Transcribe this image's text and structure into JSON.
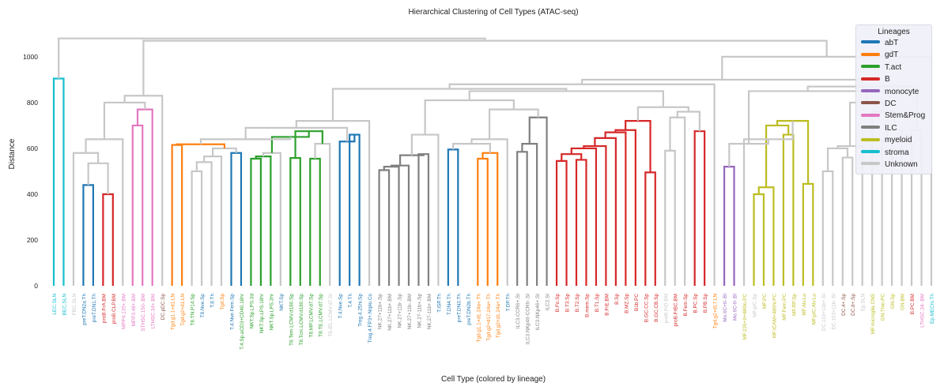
{
  "chart_data": {
    "type": "dendrogram",
    "title": "Hierarchical Clustering of Cell Types (ATAC-seq)",
    "xlabel": "Cell Type (colored by lineage)",
    "ylabel": "Distance",
    "ylim": [
      0,
      1110
    ],
    "yticks": [
      0,
      200,
      400,
      600,
      800,
      1000
    ],
    "grid": false,
    "legend_title": "Lineages",
    "legend_position": "top-right",
    "lineages": [
      {
        "name": "abT",
        "color": "#1f77b4"
      },
      {
        "name": "gdT",
        "color": "#ff7f0e"
      },
      {
        "name": "T.act",
        "color": "#2ca02c"
      },
      {
        "name": "B",
        "color": "#d62728"
      },
      {
        "name": "monocyte",
        "color": "#9467bd"
      },
      {
        "name": "DC",
        "color": "#8c564b"
      },
      {
        "name": "Stem&Prog",
        "color": "#e377c2"
      },
      {
        "name": "ILC",
        "color": "#7f7f7f"
      },
      {
        "name": "myeloid",
        "color": "#bcbd22"
      },
      {
        "name": "stroma",
        "color": "#17becf"
      },
      {
        "name": "Unknown",
        "color": "#c7c7c7"
      }
    ],
    "leaves": [
      {
        "label": "LEC.SLN",
        "lineage": "stroma"
      },
      {
        "label": "BEC.SLN",
        "lineage": "stroma"
      },
      {
        "label": "FRC.SLN",
        "lineage": "Unknown"
      },
      {
        "label": "preT.DN2a.Th",
        "lineage": "abT"
      },
      {
        "label": "preT.DN1.Th",
        "lineage": "abT"
      },
      {
        "label": "proB.FrA.BM",
        "lineage": "B"
      },
      {
        "label": "proB.CLP.BM",
        "lineage": "B"
      },
      {
        "label": "MPP4.135+.BM",
        "lineage": "Stem&Prog"
      },
      {
        "label": "MPP3.48+.BM",
        "lineage": "Stem&Prog"
      },
      {
        "label": "STHSC.150-.BM",
        "lineage": "Stem&Prog"
      },
      {
        "label": "LTHSC.34+.BM",
        "lineage": "Stem&Prog"
      },
      {
        "label": "DC.pDC.Sp",
        "lineage": "DC"
      },
      {
        "label": "Tgd.g1.1+d1.LN",
        "lineage": "gdT"
      },
      {
        "label": "Tgd.g2+d1.LN",
        "lineage": "gdT"
      },
      {
        "label": "T8.TN.P14.Sp",
        "lineage": "T.act"
      },
      {
        "label": "T8.Nve.Sp",
        "lineage": "abT"
      },
      {
        "label": "T.8.Th",
        "lineage": "abT"
      },
      {
        "label": "Tgd.Sp",
        "lineage": "gdT"
      },
      {
        "label": "T.4.Nve.Fem.Sp",
        "lineage": "abT"
      },
      {
        "label": "T.4.Sp.aCD3+CD40.18hr",
        "lineage": "T.act"
      },
      {
        "label": "NKT.Sp.LPS.3d",
        "lineage": "T.act"
      },
      {
        "label": "NKT.Sp.LPS.18hr",
        "lineage": "T.act"
      },
      {
        "label": "NKT.Sp.LPS.3hr",
        "lineage": "T.act"
      },
      {
        "label": "NKT.Sp",
        "lineage": "abT"
      },
      {
        "label": "T8.Tem.LCMV.d180.Sp",
        "lineage": "T.act"
      },
      {
        "label": "T8.Tcm.LCMV.d180.Sp",
        "lineage": "T.act"
      },
      {
        "label": "T8.MP.LCMV.d7.Sp",
        "lineage": "T.act"
      },
      {
        "label": "T8.TE.LCMV.d7.Sp",
        "lineage": "T.act"
      },
      {
        "label": "T8.IEL.LCMV.d7.SI",
        "lineage": "Unknown"
      },
      {
        "label": "T.4.Nve.Sp",
        "lineage": "abT"
      },
      {
        "label": "T.4.Th",
        "lineage": "abT"
      },
      {
        "label": "Treg.4.25hi.Sp",
        "lineage": "abT"
      },
      {
        "label": "Treg.4.FP3+.Nrplo.Co",
        "lineage": "abT"
      },
      {
        "label": "NK.27+11b+.Sp",
        "lineage": "ILC"
      },
      {
        "label": "NK.27+11b+.BM",
        "lineage": "ILC"
      },
      {
        "label": "NK.27+11b-.Sp",
        "lineage": "ILC"
      },
      {
        "label": "NK.27+11b-.BM",
        "lineage": "ILC"
      },
      {
        "label": "NK.27-11b+.Sp",
        "lineage": "ILC"
      },
      {
        "label": "NK.27-11b+.BM",
        "lineage": "ILC"
      },
      {
        "label": "T.ISP.Th",
        "lineage": "abT"
      },
      {
        "label": "T.DN4.Th",
        "lineage": "abT"
      },
      {
        "label": "preT.DN3.Th",
        "lineage": "abT"
      },
      {
        "label": "preT.DN2b.Th",
        "lineage": "abT"
      },
      {
        "label": "Tgd.g1.1+d1.24a+.Th",
        "lineage": "gdT"
      },
      {
        "label": "Tgd.g2+d17.24a+.Th",
        "lineage": "gdT"
      },
      {
        "label": "Tgd.g2+d1.24a+.Th",
        "lineage": "gdT"
      },
      {
        "label": "T.DP.Th",
        "lineage": "abT"
      },
      {
        "label": "ILC3.CCR6+.SI",
        "lineage": "ILC"
      },
      {
        "label": "ILC3.NKp46-CCR6-.SI",
        "lineage": "ILC"
      },
      {
        "label": "ILC3.NKp46+.SI",
        "lineage": "ILC"
      },
      {
        "label": "ILC2.SI",
        "lineage": "ILC"
      },
      {
        "label": "B.Fo.Sp",
        "lineage": "B"
      },
      {
        "label": "B.T3.Sp",
        "lineage": "B"
      },
      {
        "label": "B.T2.Sp",
        "lineage": "B"
      },
      {
        "label": "B.mem.Sp",
        "lineage": "B"
      },
      {
        "label": "B.T1.Sp",
        "lineage": "B"
      },
      {
        "label": "B.FrE.BM",
        "lineage": "B"
      },
      {
        "label": "B.Sp",
        "lineage": "B"
      },
      {
        "label": "B.MZ.Sp",
        "lineage": "B"
      },
      {
        "label": "B1b.PC",
        "lineage": "B"
      },
      {
        "label": "B.GC.CC.Sp",
        "lineage": "B"
      },
      {
        "label": "B.GC.CB.Sp",
        "lineage": "B"
      },
      {
        "label": "preB.FrD.BM",
        "lineage": "Unknown"
      },
      {
        "label": "proB.FrBC.BM",
        "lineage": "B"
      },
      {
        "label": "B.Fem.Sp",
        "lineage": "B"
      },
      {
        "label": "B.PC.Sp",
        "lineage": "B"
      },
      {
        "label": "B.PB.Sp",
        "lineage": "B"
      },
      {
        "label": "Tgd.g2+d17.LN",
        "lineage": "gdT"
      },
      {
        "label": "Mo.6C+II-.Bl",
        "lineage": "monocyte"
      },
      {
        "label": "Mo.6C-II-.Bl",
        "lineage": "monocyte"
      },
      {
        "label": "MF.226+II+480lo.PC",
        "lineage": "myeloid"
      },
      {
        "label": "MF.pIC.Sp",
        "lineage": "Unknown"
      },
      {
        "label": "MF.PC",
        "lineage": "myeloid"
      },
      {
        "label": "MF.ICAM+480hi.PC",
        "lineage": "myeloid"
      },
      {
        "label": "MF.Fem.PC",
        "lineage": "myeloid"
      },
      {
        "label": "MF.RP.Sp",
        "lineage": "myeloid"
      },
      {
        "label": "MF.Alv.Lu",
        "lineage": "myeloid"
      },
      {
        "label": "MF.pIC.Alv.Lu",
        "lineage": "myeloid"
      },
      {
        "label": "DC.103+11b+.SI",
        "lineage": "Unknown"
      },
      {
        "label": "DC.103+11b-.SI",
        "lineage": "Unknown"
      },
      {
        "label": "DC.4+.Sp",
        "lineage": "DC"
      },
      {
        "label": "DC.8+.Sp",
        "lineage": "DC"
      },
      {
        "label": "Ep.SLN",
        "lineage": "Unknown"
      },
      {
        "label": "MF.microglia.CNS",
        "lineage": "myeloid"
      },
      {
        "label": "GN.Thio.PC",
        "lineage": "myeloid"
      },
      {
        "label": "GN.Sp",
        "lineage": "myeloid"
      },
      {
        "label": "GN.BM",
        "lineage": "myeloid"
      },
      {
        "label": "B.PC.BM",
        "lineage": "B"
      },
      {
        "label": "LTHSC.34-.BM",
        "lineage": "Stem&Prog"
      },
      {
        "label": "Ep.MEChi.Th",
        "lineage": "stroma"
      }
    ],
    "merges": [
      {
        "a": 0,
        "b": 1,
        "h": 905,
        "lin": "stroma"
      },
      {
        "a": 3,
        "b": 4,
        "h": 440,
        "lin": "abT"
      },
      {
        "a": 5,
        "b": 6,
        "h": 400,
        "lin": "B"
      },
      {
        "a": 91,
        "b": 92,
        "h": 535
      },
      {
        "a": 93,
        "b": 2,
        "h": 580
      },
      {
        "a": 94,
        "b": 7,
        "h": 640
      },
      {
        "a": 8,
        "b": 9,
        "h": 700,
        "lin": "Stem&Prog"
      },
      {
        "a": 96,
        "b": 10,
        "h": 770,
        "lin": "Stem&Prog"
      },
      {
        "a": 95,
        "b": 97,
        "h": 800
      },
      {
        "a": 98,
        "b": 11,
        "h": 830
      },
      {
        "a": 12,
        "b": 13,
        "h": 615,
        "lin": "gdT"
      },
      {
        "a": 14,
        "b": 15,
        "h": 500
      },
      {
        "a": 101,
        "b": 16,
        "h": 540
      },
      {
        "a": 102,
        "b": 17,
        "h": 565
      },
      {
        "a": 18,
        "b": 19,
        "h": 580,
        "lin": "abT"
      },
      {
        "a": 103,
        "b": 104,
        "h": 600
      },
      {
        "a": 100,
        "b": 105,
        "h": 618,
        "lin": "gdT"
      },
      {
        "a": 20,
        "b": 21,
        "h": 555,
        "lin": "T.act"
      },
      {
        "a": 107,
        "b": 22,
        "h": 565,
        "lin": "T.act"
      },
      {
        "a": 108,
        "b": 23,
        "h": 580
      },
      {
        "a": 24,
        "b": 25,
        "h": 558,
        "lin": "T.act"
      },
      {
        "a": 26,
        "b": 27,
        "h": 555,
        "lin": "T.act"
      },
      {
        "a": 111,
        "b": 28,
        "h": 620
      },
      {
        "a": 110,
        "b": 112,
        "h": 675,
        "lin": "T.act"
      },
      {
        "a": 109,
        "b": 113,
        "h": 650,
        "lin": "T.act"
      },
      {
        "a": 106,
        "b": 114,
        "h": 640
      },
      {
        "a": 30,
        "b": 31,
        "h": 660,
        "lin": "abT"
      },
      {
        "a": 29,
        "b": 116,
        "h": 630,
        "lin": "abT"
      },
      {
        "a": 115,
        "b": 117,
        "h": 690
      },
      {
        "a": 118,
        "b": 32,
        "h": 720
      },
      {
        "a": 33,
        "b": 34,
        "h": 505,
        "lin": "ILC"
      },
      {
        "a": 120,
        "b": 35,
        "h": 520,
        "lin": "ILC"
      },
      {
        "a": 121,
        "b": 36,
        "h": 525,
        "lin": "ILC"
      },
      {
        "a": 37,
        "b": 38,
        "h": 575,
        "lin": "ILC"
      },
      {
        "a": 122,
        "b": 123,
        "h": 570,
        "lin": "ILC"
      },
      {
        "a": 40,
        "b": 41,
        "h": 595,
        "lin": "abT"
      },
      {
        "a": 43,
        "b": 44,
        "h": 555,
        "lin": "gdT"
      },
      {
        "a": 126,
        "b": 45,
        "h": 580,
        "lin": "gdT"
      },
      {
        "a": 125,
        "b": 127,
        "h": 620
      },
      {
        "a": 124,
        "b": 39,
        "h": 660
      },
      {
        "a": 128,
        "b": 46,
        "h": 640
      },
      {
        "a": 47,
        "b": 48,
        "h": 585,
        "lin": "ILC"
      },
      {
        "a": 131,
        "b": 49,
        "h": 620,
        "lin": "ILC"
      },
      {
        "a": 132,
        "b": 50,
        "h": 735,
        "lin": "ILC"
      },
      {
        "a": 51,
        "b": 52,
        "h": 545,
        "lin": "B"
      },
      {
        "a": 53,
        "b": 54,
        "h": 550,
        "lin": "B"
      },
      {
        "a": 134,
        "b": 135,
        "h": 575,
        "lin": "B"
      },
      {
        "a": 136,
        "b": 55,
        "h": 600,
        "lin": "B"
      },
      {
        "a": 137,
        "b": 56,
        "h": 610,
        "lin": "B"
      },
      {
        "a": 138,
        "b": 57,
        "h": 645,
        "lin": "B"
      },
      {
        "a": 139,
        "b": 58,
        "h": 670,
        "lin": "B"
      },
      {
        "a": 140,
        "b": 59,
        "h": 680,
        "lin": "B"
      },
      {
        "a": 60,
        "b": 61,
        "h": 495,
        "lin": "B"
      },
      {
        "a": 141,
        "b": 142,
        "h": 720,
        "lin": "B"
      },
      {
        "a": 62,
        "b": 63,
        "h": 590
      },
      {
        "a": 144,
        "b": 64,
        "h": 735
      },
      {
        "a": 65,
        "b": 66,
        "h": 675,
        "lin": "B"
      },
      {
        "a": 145,
        "b": 146,
        "h": 760
      },
      {
        "a": 143,
        "b": 147,
        "h": 780
      },
      {
        "a": 130,
        "b": 133,
        "h": 770
      },
      {
        "a": 149,
        "b": 129,
        "h": 810
      },
      {
        "a": 150,
        "b": 148,
        "h": 850
      },
      {
        "a": 119,
        "b": 151,
        "h": 860
      },
      {
        "a": 152,
        "b": 67,
        "h": 880
      },
      {
        "a": 68,
        "b": 69,
        "h": 520,
        "lin": "monocyte"
      },
      {
        "a": 71,
        "b": 72,
        "h": 400,
        "lin": "myeloid"
      },
      {
        "a": 155,
        "b": 73,
        "h": 430,
        "lin": "myeloid"
      },
      {
        "a": 74,
        "b": 75,
        "h": 660,
        "lin": "myeloid"
      },
      {
        "a": 76,
        "b": 77,
        "h": 445,
        "lin": "myeloid"
      },
      {
        "a": 156,
        "b": 157,
        "h": 700,
        "lin": "myeloid"
      },
      {
        "a": 159,
        "b": 158,
        "h": 720,
        "lin": "myeloid"
      },
      {
        "a": 160,
        "b": 70,
        "h": 640
      },
      {
        "a": 154,
        "b": 161,
        "h": 620
      },
      {
        "a": 78,
        "b": 79,
        "h": 500
      },
      {
        "a": 80,
        "b": 81,
        "h": 560
      },
      {
        "a": 163,
        "b": 164,
        "h": 600
      },
      {
        "a": 165,
        "b": 82,
        "h": 610
      },
      {
        "a": 84,
        "b": 85,
        "h": 640
      },
      {
        "a": 167,
        "b": 86,
        "h": 680
      },
      {
        "a": 168,
        "b": 83,
        "h": 760
      },
      {
        "a": 166,
        "b": 169,
        "h": 800
      },
      {
        "a": 162,
        "b": 170,
        "h": 850
      },
      {
        "a": 87,
        "b": 88,
        "h": 680
      },
      {
        "a": 171,
        "b": 172,
        "h": 870
      },
      {
        "a": 153,
        "b": 173,
        "h": 900
      },
      {
        "a": 174,
        "b": 89,
        "h": 1000
      },
      {
        "a": 175,
        "b": 99,
        "h": 1070
      },
      {
        "a": 176,
        "b": 90,
        "h": 1080
      }
    ]
  }
}
